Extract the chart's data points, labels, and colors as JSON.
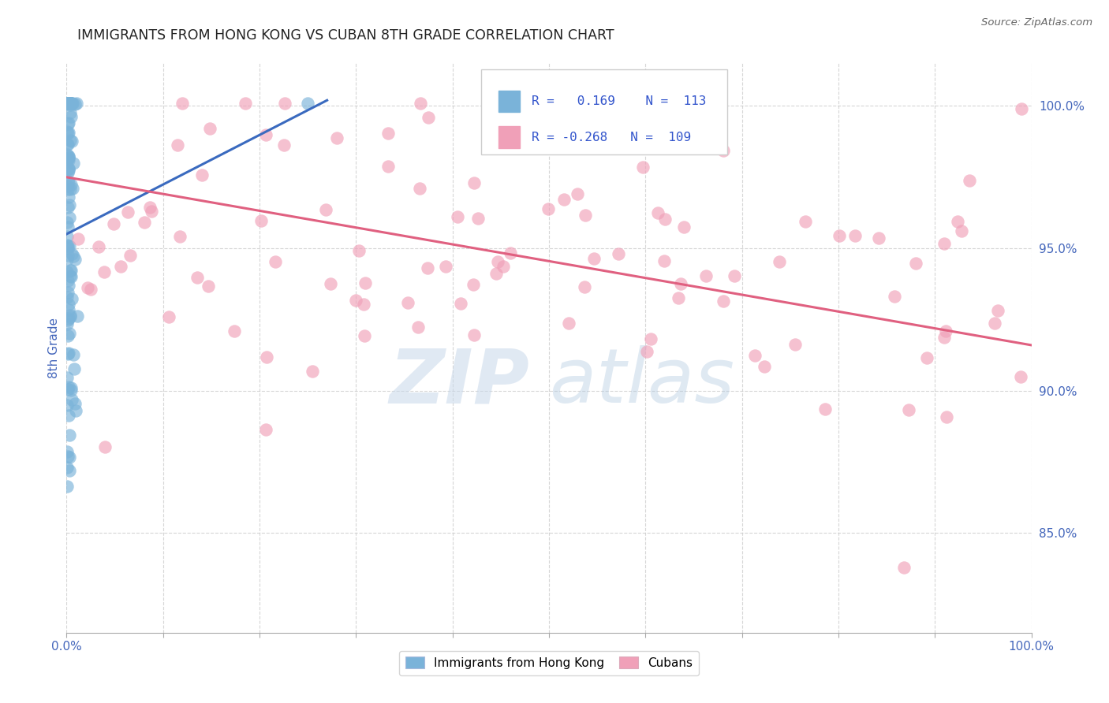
{
  "title": "IMMIGRANTS FROM HONG KONG VS CUBAN 8TH GRADE CORRELATION CHART",
  "source": "Source: ZipAtlas.com",
  "ylabel": "8th Grade",
  "ytick_labels": [
    "85.0%",
    "90.0%",
    "95.0%",
    "100.0%"
  ],
  "ytick_values": [
    0.85,
    0.9,
    0.95,
    1.0
  ],
  "legend_blue_label": "Immigrants from Hong Kong",
  "legend_pink_label": "Cubans",
  "R_blue": 0.169,
  "N_blue": 113,
  "R_pink": -0.268,
  "N_pink": 109,
  "bg_color": "#ffffff",
  "blue_color": "#7ab3d9",
  "pink_color": "#f0a0b8",
  "blue_line_color": "#3a6abf",
  "pink_line_color": "#e06080",
  "title_color": "#222222",
  "axis_label_color": "#4466bb",
  "grid_color": "#cccccc",
  "legend_text_color": "#3355cc",
  "blue_line_x0": 0.0,
  "blue_line_y0": 0.955,
  "blue_line_x1": 0.27,
  "blue_line_y1": 1.002,
  "pink_line_x0": 0.0,
  "pink_line_y0": 0.975,
  "pink_line_x1": 1.0,
  "pink_line_y1": 0.916,
  "ylim_min": 0.815,
  "ylim_max": 1.015,
  "xlim_min": 0.0,
  "xlim_max": 1.0
}
